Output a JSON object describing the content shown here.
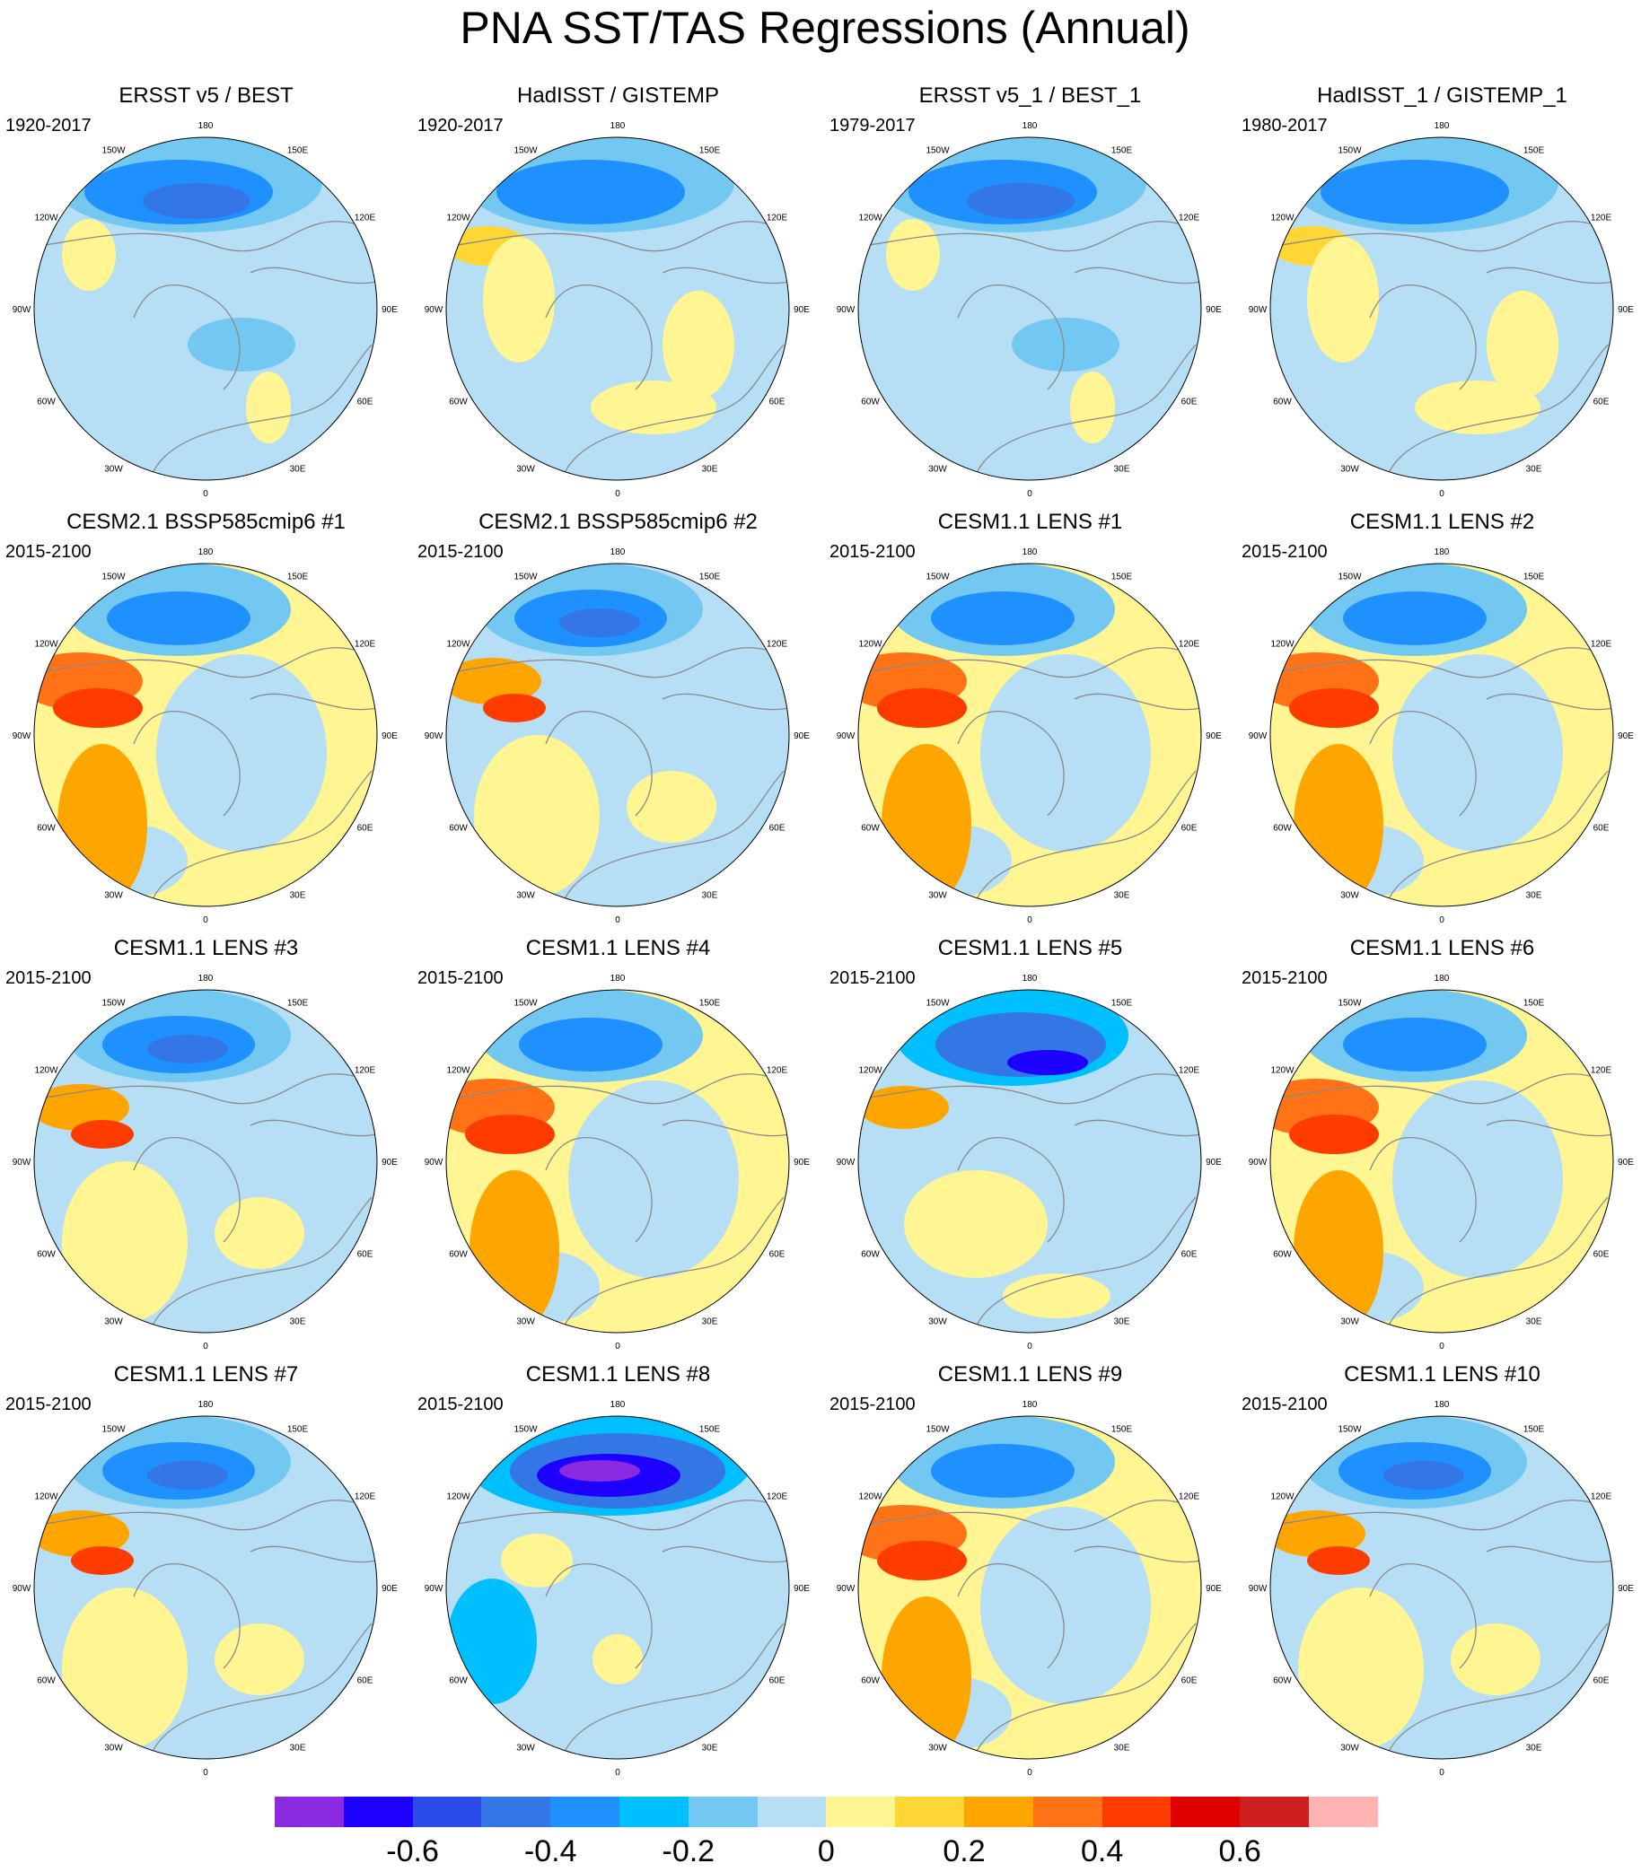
{
  "title": "PNA SST/TAS Regressions (Annual)",
  "longitude_labels": [
    "180",
    "150E",
    "120E",
    "90E",
    "60E",
    "30E",
    "0",
    "30W",
    "60W",
    "90W",
    "120W",
    "150W"
  ],
  "panels": [
    {
      "title": "ERSST v5 / BEST",
      "period": "1920-2017",
      "pattern": "obs"
    },
    {
      "title": "HadISST / GISTEMP",
      "period": "1920-2017",
      "pattern": "obs_had"
    },
    {
      "title": "ERSST v5_1 / BEST_1",
      "period": "1979-2017",
      "pattern": "obs"
    },
    {
      "title": "HadISST_1 / GISTEMP_1",
      "period": "1980-2017",
      "pattern": "obs_had"
    },
    {
      "title": "CESM2.1 BSSP585cmip6 #1",
      "period": "2015-2100",
      "pattern": "warm"
    },
    {
      "title": "CESM2.1 BSSP585cmip6 #2",
      "period": "2015-2100",
      "pattern": "mixed"
    },
    {
      "title": "CESM1.1 LENS #1",
      "period": "2015-2100",
      "pattern": "warm"
    },
    {
      "title": "CESM1.1 LENS #2",
      "period": "2015-2100",
      "pattern": "warm"
    },
    {
      "title": "CESM1.1 LENS #3",
      "period": "2015-2100",
      "pattern": "mixed"
    },
    {
      "title": "CESM1.1 LENS #4",
      "period": "2015-2100",
      "pattern": "warm"
    },
    {
      "title": "CESM1.1 LENS #5",
      "period": "2015-2100",
      "pattern": "cool"
    },
    {
      "title": "CESM1.1 LENS #6",
      "period": "2015-2100",
      "pattern": "warm"
    },
    {
      "title": "CESM1.1 LENS #7",
      "period": "2015-2100",
      "pattern": "mixed"
    },
    {
      "title": "CESM1.1 LENS #8",
      "period": "2015-2100",
      "pattern": "strongcool"
    },
    {
      "title": "CESM1.1 LENS #9",
      "period": "2015-2100",
      "pattern": "warm"
    },
    {
      "title": "CESM1.1 LENS #10",
      "period": "2015-2100",
      "pattern": "mixed"
    }
  ],
  "colorbar": {
    "colors": [
      "#8a2be2",
      "#1e00ff",
      "#2b4be8",
      "#3377e6",
      "#1e90ff",
      "#00bfff",
      "#72c8f0",
      "#b6def4",
      "#fff592",
      "#ffd633",
      "#ffa500",
      "#ff7216",
      "#ff3c00",
      "#e10000",
      "#cd1f1f",
      "#ffb3b3"
    ],
    "tick_labels": [
      {
        "text": "-0.6",
        "boundary": 2
      },
      {
        "text": "-0.4",
        "boundary": 4
      },
      {
        "text": "-0.2",
        "boundary": 6
      },
      {
        "text": "0",
        "boundary": 8
      },
      {
        "text": "0.2",
        "boundary": 10
      },
      {
        "text": "0.4",
        "boundary": 12
      },
      {
        "text": "0.6",
        "boundary": 14
      }
    ]
  }
}
